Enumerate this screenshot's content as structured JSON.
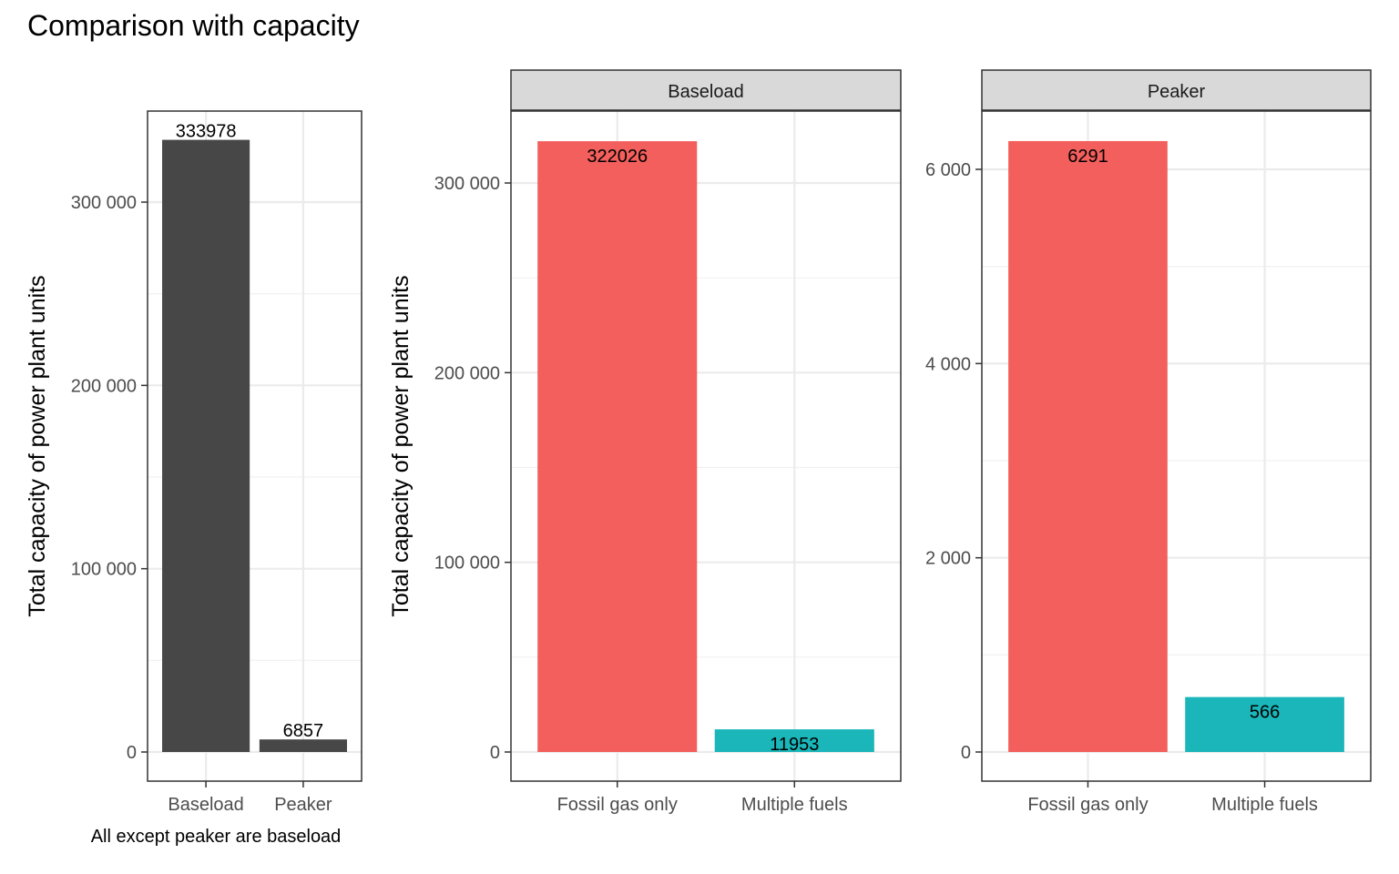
{
  "title": "Comparison with capacity",
  "chart_data": [
    {
      "type": "bar",
      "categories": [
        "Baseload",
        "Peaker"
      ],
      "values": [
        333978,
        6857
      ],
      "data_labels": [
        "333978",
        "6857"
      ],
      "ylabel": "Total capacity of power plant units",
      "ylim": [
        0,
        340000
      ],
      "yticks": [
        0,
        100000,
        200000,
        300000
      ],
      "ytick_labels": [
        "0",
        "100 000",
        "200 000",
        "300 000"
      ],
      "caption": "All except peaker are baseload",
      "bar_color": "#474747",
      "grid": true
    },
    {
      "type": "bar",
      "ylabel": "Total capacity of power plant units",
      "categories": [
        "Fossil gas only",
        "Multiple fuels"
      ],
      "bar_colors": [
        "#F25F5C",
        "#1AB6B9"
      ],
      "grid": true,
      "facets": [
        {
          "strip_label": "Baseload",
          "values": [
            322026,
            11953
          ],
          "data_labels": [
            "322026",
            "11953"
          ],
          "ylim": [
            0,
            340000
          ],
          "yticks": [
            0,
            100000,
            200000,
            300000
          ],
          "ytick_labels": [
            "0",
            "100 000",
            "200 000",
            "300 000"
          ]
        },
        {
          "strip_label": "Peaker",
          "values": [
            6291,
            566
          ],
          "data_labels": [
            "6291",
            "566"
          ],
          "ylim": [
            0,
            6640
          ],
          "yticks": [
            0,
            2000,
            4000,
            6000
          ],
          "ytick_labels": [
            "0",
            "2 000",
            "4 000",
            "6 000"
          ]
        }
      ]
    }
  ]
}
